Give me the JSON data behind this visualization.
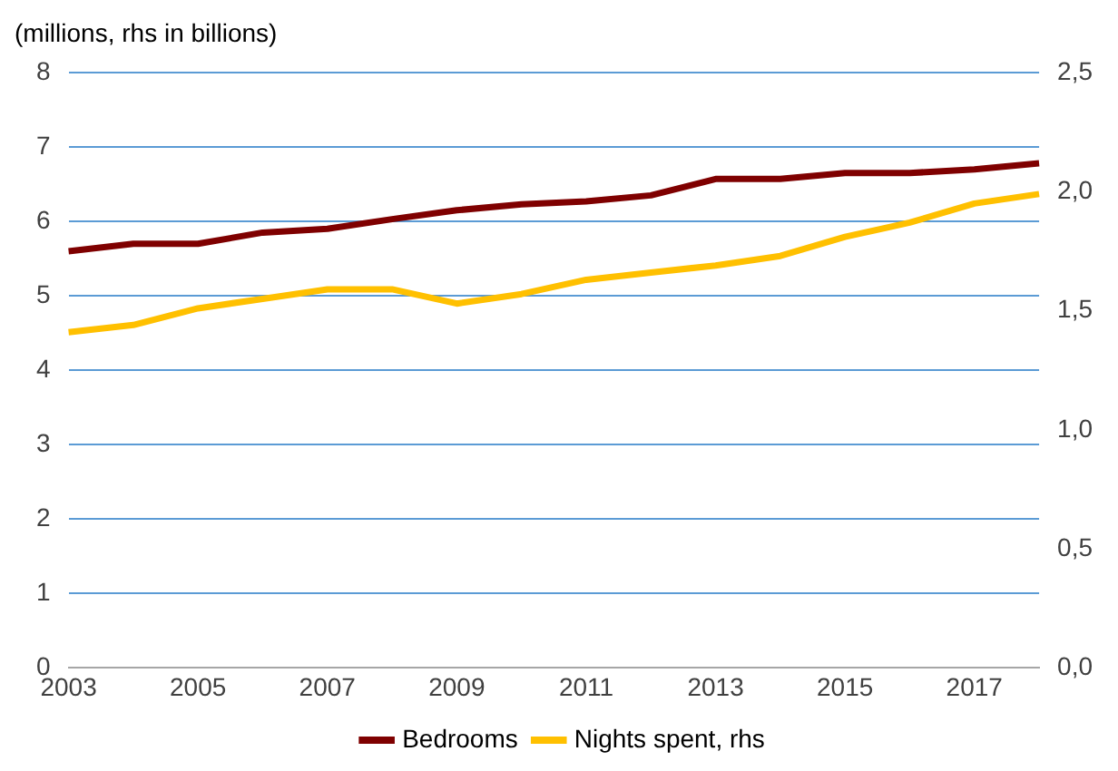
{
  "chart_data": {
    "type": "line",
    "ylabel": "(millions, rhs in billions)",
    "categories": [
      "2003",
      null,
      "2005",
      null,
      "2007",
      null,
      "2009",
      null,
      "2011",
      null,
      "2013",
      null,
      "2015",
      null,
      "2017",
      null
    ],
    "series": [
      {
        "name": "Bedrooms",
        "color": "#7f0000",
        "values": [
          5.6,
          5.7,
          5.7,
          5.85,
          5.9,
          6.03,
          6.15,
          6.23,
          6.27,
          6.35,
          6.57,
          6.57,
          6.65,
          6.65,
          6.7,
          6.78
        ]
      },
      {
        "name": "Nights spent, rhs",
        "color": "#ffc000",
        "axis": "y2",
        "values": [
          1.41,
          1.44,
          1.51,
          1.55,
          1.59,
          1.59,
          1.53,
          1.57,
          1.63,
          1.66,
          1.69,
          1.73,
          1.81,
          1.87,
          1.95,
          1.99
        ]
      }
    ],
    "ylim": [
      0,
      8
    ],
    "yticks": [
      0,
      1,
      2,
      3,
      4,
      5,
      6,
      7,
      8
    ],
    "y2lim": [
      0,
      2.5
    ],
    "y2ticks": [
      {
        "value": 0,
        "label": "0,0"
      },
      {
        "value": 0.5,
        "label": "0,5"
      },
      {
        "value": 1,
        "label": "1,0"
      },
      {
        "value": 1.5,
        "label": "1,5"
      },
      {
        "value": 2,
        "label": "2,0"
      },
      {
        "value": 2.5,
        "label": "2,5"
      }
    ],
    "grid": "y",
    "legend": "bottom",
    "marker": "none",
    "line_style": "solid"
  }
}
